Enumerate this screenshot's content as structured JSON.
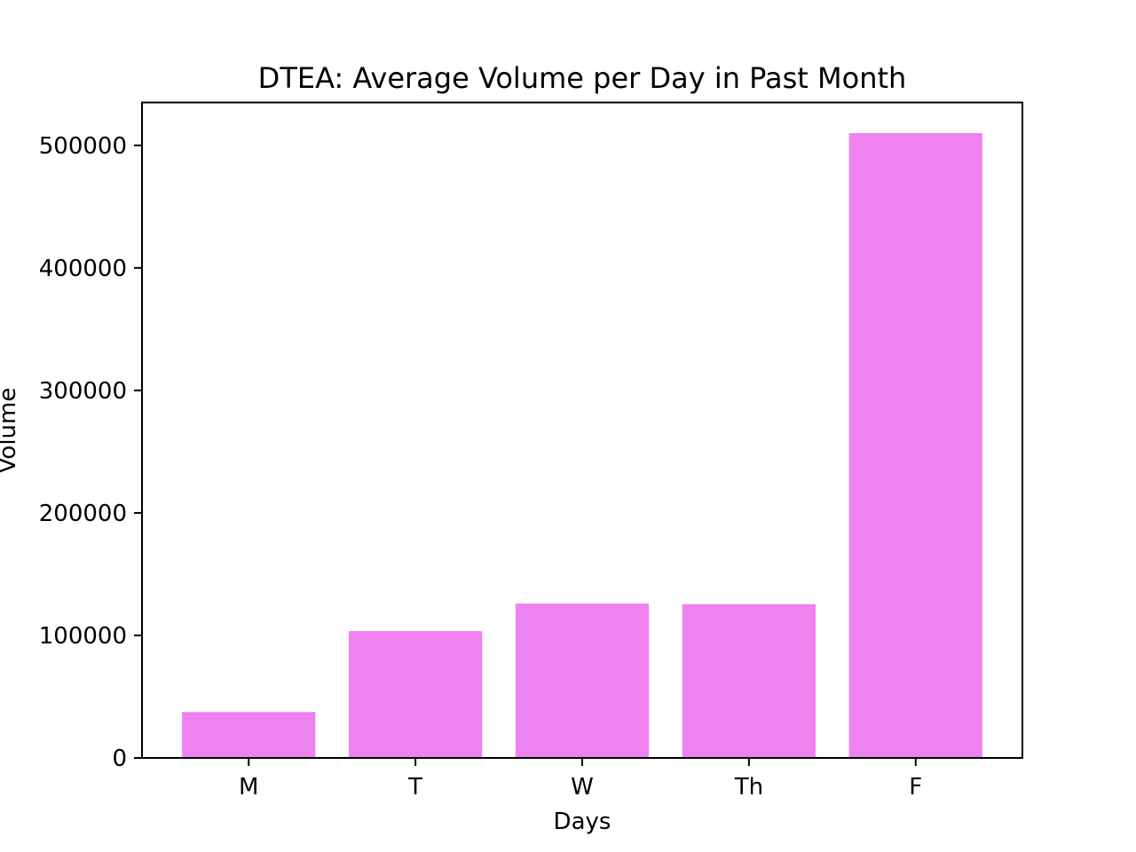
{
  "chart_data": {
    "type": "bar",
    "title": "DTEA: Average Volume per Day in Past Month",
    "xlabel": "Days",
    "ylabel": "Volume",
    "categories": [
      "M",
      "T",
      "W",
      "Th",
      "F"
    ],
    "values": [
      37500,
      103500,
      126000,
      125500,
      510000
    ],
    "ylim": [
      0,
      535000
    ],
    "yticks": [
      0,
      100000,
      200000,
      300000,
      400000,
      500000
    ],
    "ytick_labels": [
      "0",
      "100000",
      "200000",
      "300000",
      "400000",
      "500000"
    ],
    "bar_color": "#ee82ee",
    "grid": false,
    "legend": "none"
  }
}
